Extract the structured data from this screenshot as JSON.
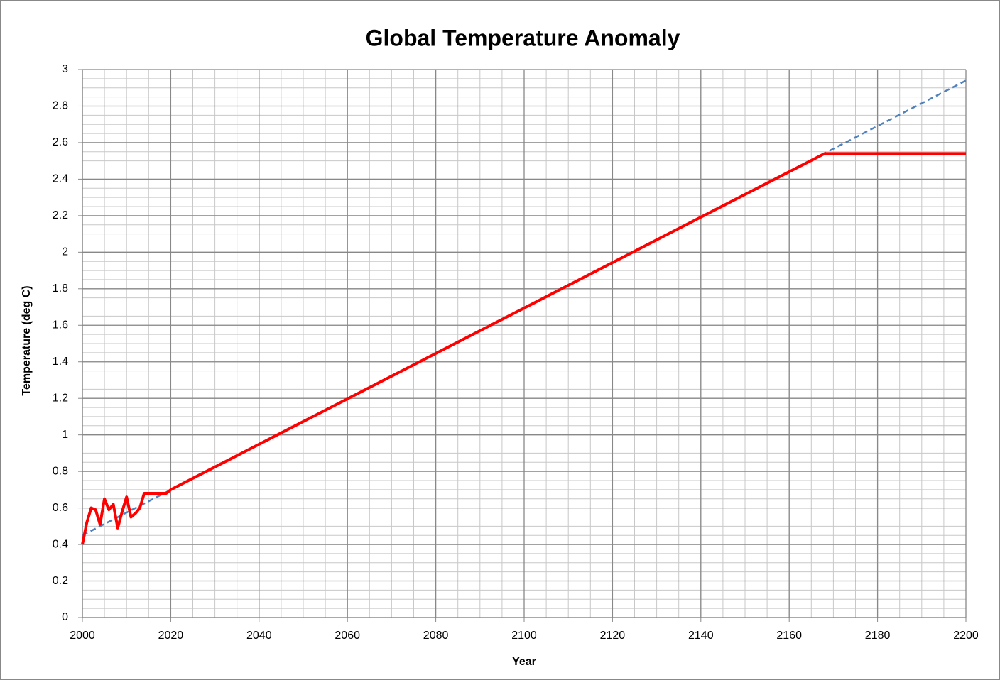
{
  "chart_data": {
    "type": "line",
    "title": "Global Temperature Anomaly",
    "x_label": "Year",
    "y_label": "Temperature (deg C)",
    "xlim": [
      2000,
      2200
    ],
    "xticks": [
      2000,
      2020,
      2040,
      2060,
      2080,
      2100,
      2120,
      2140,
      2160,
      2180,
      2200
    ],
    "ylim": [
      0,
      3
    ],
    "yticks": [
      0,
      0.2,
      0.4,
      0.6,
      0.8,
      1,
      1.2,
      1.4,
      1.6,
      1.8,
      2,
      2.2,
      2.4,
      2.6,
      2.8,
      3
    ],
    "grid": true,
    "x_minor_step": 5,
    "y_minor_step": 0.05,
    "series": [
      {
        "color": "#4f81bd",
        "dashed": true,
        "width": 2.5,
        "x": [
          2000,
          2200
        ],
        "values": [
          0.45,
          2.94
        ]
      },
      {
        "color": "#ff0000",
        "dashed": false,
        "width": 4,
        "x": [
          2000,
          2001,
          2002,
          2003,
          2004,
          2005,
          2006,
          2007,
          2008,
          2009,
          2010,
          2011,
          2012,
          2013,
          2014,
          2019,
          2020,
          2168,
          2200
        ],
        "values": [
          0.4,
          0.52,
          0.6,
          0.59,
          0.51,
          0.65,
          0.59,
          0.62,
          0.49,
          0.58,
          0.66,
          0.55,
          0.57,
          0.6,
          0.68,
          0.68,
          0.7,
          2.54,
          2.54
        ]
      }
    ]
  }
}
